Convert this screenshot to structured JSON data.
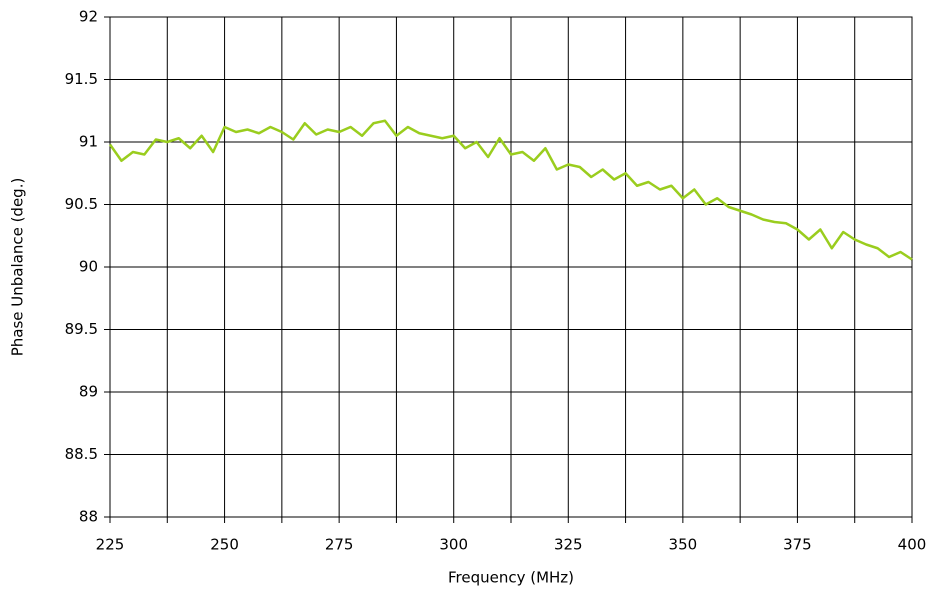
{
  "chart_data": {
    "type": "line",
    "x_label": "Frequency (MHz)",
    "y_label": "Phase Unbalance (deg.)",
    "x": [
      225,
      227.5,
      230,
      232.5,
      235,
      237.5,
      240,
      242.5,
      245,
      247.5,
      250,
      252.5,
      255,
      257.5,
      260,
      262.5,
      265,
      267.5,
      270,
      272.5,
      275,
      277.5,
      280,
      282.5,
      285,
      287.5,
      290,
      292.5,
      295,
      297.5,
      300,
      302.5,
      305,
      307.5,
      310,
      312.5,
      315,
      317.5,
      320,
      322.5,
      325,
      327.5,
      330,
      332.5,
      335,
      337.5,
      340,
      342.5,
      345,
      347.5,
      350,
      352.5,
      355,
      357.5,
      360,
      362.5,
      365,
      367.5,
      370,
      372.5,
      375,
      377.5,
      380,
      382.5,
      385,
      387.5,
      390,
      392.5,
      395,
      397.5,
      400
    ],
    "series": [
      {
        "color": "#9acd1e",
        "values": [
          90.98,
          90.85,
          90.92,
          90.9,
          91.02,
          91.0,
          91.03,
          90.95,
          91.05,
          90.92,
          91.12,
          91.08,
          91.1,
          91.07,
          91.12,
          91.08,
          91.02,
          91.15,
          91.06,
          91.1,
          91.08,
          91.12,
          91.05,
          91.15,
          91.17,
          91.05,
          91.12,
          91.07,
          91.05,
          91.03,
          91.05,
          90.95,
          91.0,
          90.88,
          91.03,
          90.9,
          90.92,
          90.85,
          90.95,
          90.78,
          90.82,
          90.8,
          90.72,
          90.78,
          90.7,
          90.75,
          90.65,
          90.68,
          90.62,
          90.65,
          90.55,
          90.62,
          90.5,
          90.55,
          90.48,
          90.45,
          90.42,
          90.38,
          90.36,
          90.35,
          90.3,
          90.22,
          90.3,
          90.15,
          90.28,
          90.22,
          90.18,
          90.15,
          90.08,
          90.12,
          90.06
        ]
      }
    ],
    "xlim": [
      225,
      400
    ],
    "xticks": [
      225,
      250,
      275,
      300,
      325,
      350,
      375,
      400
    ],
    "x_minor_gridlines": [
      237.5,
      262.5,
      287.5,
      312.5,
      337.5,
      362.5,
      387.5
    ],
    "ylim": [
      88,
      92
    ],
    "yticks": [
      88,
      88.5,
      89,
      89.5,
      90,
      90.5,
      91,
      91.5,
      92
    ],
    "grid": true
  }
}
